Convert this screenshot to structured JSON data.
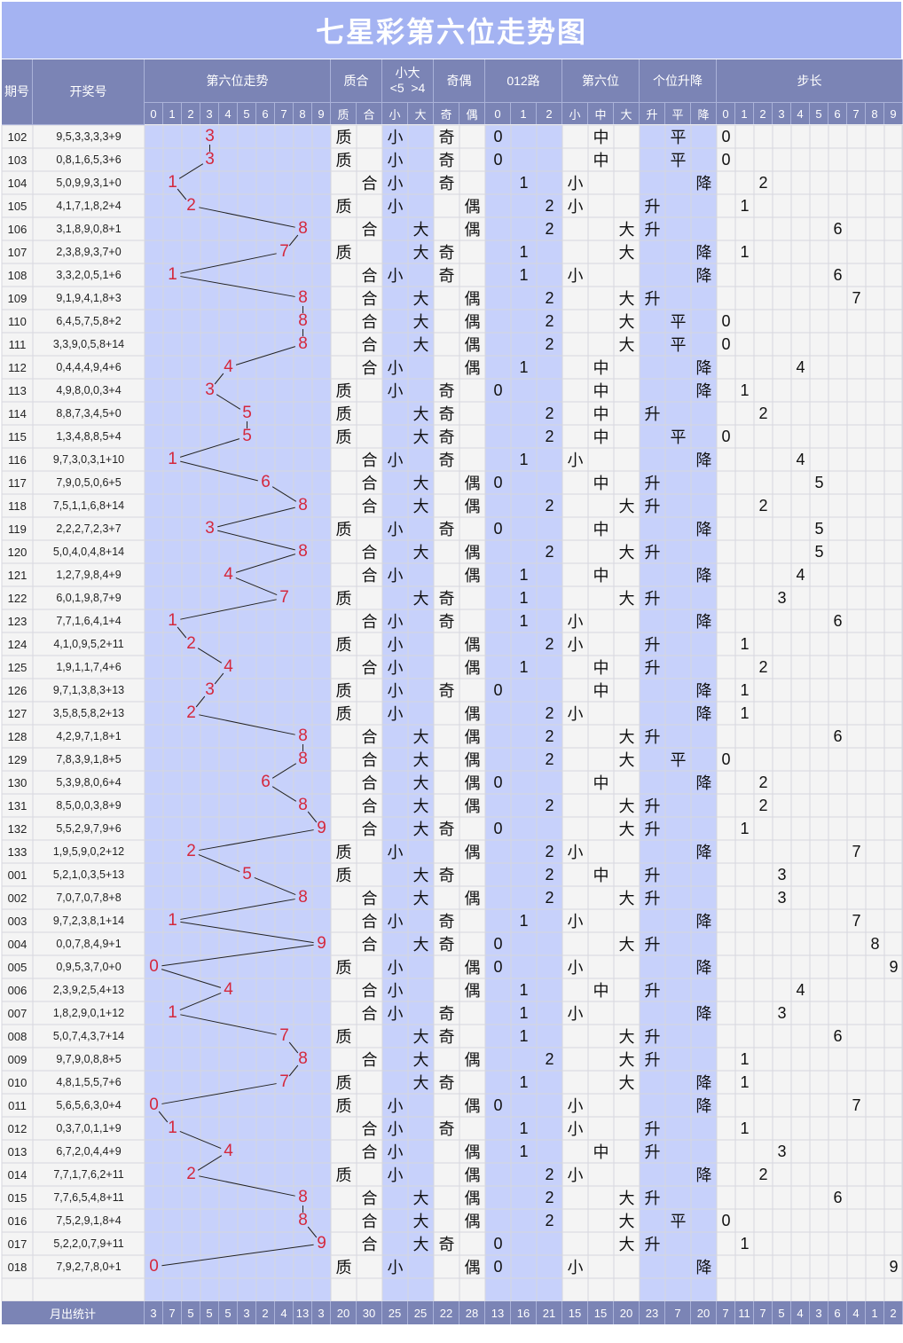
{
  "title": "七星彩第六位走势图",
  "headers": {
    "issue": "期号",
    "draw": "开奖号",
    "trend": "第六位走势",
    "prime": "质合",
    "size_top": "小大",
    "size_sub": "<5  >4",
    "parity": "奇偶",
    "road": "012路",
    "pos": "第六位",
    "updown": "个位升降",
    "step": "步长"
  },
  "sub_headers": {
    "digits": [
      "0",
      "1",
      "2",
      "3",
      "4",
      "5",
      "6",
      "7",
      "8",
      "9"
    ],
    "prime": [
      "质",
      "合"
    ],
    "size": [
      "小",
      "大"
    ],
    "parity": [
      "奇",
      "偶"
    ],
    "road": [
      "0",
      "1",
      "2"
    ],
    "pos": [
      "小",
      "中",
      "大"
    ],
    "updown": [
      "升",
      "平",
      "降"
    ],
    "step": [
      "0",
      "1",
      "2",
      "3",
      "4",
      "5",
      "6",
      "7",
      "8",
      "9"
    ]
  },
  "footer_label": "月出统计",
  "chart_data": {
    "type": "line",
    "title": "七星彩第六位走势图",
    "xlabel": "期号",
    "ylabel": "第六位",
    "ylim": [
      0,
      9
    ],
    "rows": [
      {
        "issue": "102",
        "draw": "9,5,3,3,3,3+9",
        "digit": 3,
        "prime": "质",
        "size": "小",
        "parity": "奇",
        "road": "0",
        "pos": "中",
        "updown": "平",
        "step": "0"
      },
      {
        "issue": "103",
        "draw": "0,8,1,6,5,3+6",
        "digit": 3,
        "prime": "质",
        "size": "小",
        "parity": "奇",
        "road": "0",
        "pos": "中",
        "updown": "平",
        "step": "0"
      },
      {
        "issue": "104",
        "draw": "5,0,9,9,3,1+0",
        "digit": 1,
        "prime": "合",
        "size": "小",
        "parity": "奇",
        "road": "1",
        "pos": "小",
        "updown": "降",
        "step": "2"
      },
      {
        "issue": "105",
        "draw": "4,1,7,1,8,2+4",
        "digit": 2,
        "prime": "质",
        "size": "小",
        "parity": "偶",
        "road": "2",
        "pos": "小",
        "updown": "升",
        "step": "1"
      },
      {
        "issue": "106",
        "draw": "3,1,8,9,0,8+1",
        "digit": 8,
        "prime": "合",
        "size": "大",
        "parity": "偶",
        "road": "2",
        "pos": "大",
        "updown": "升",
        "step": "6"
      },
      {
        "issue": "107",
        "draw": "2,3,8,9,3,7+0",
        "digit": 7,
        "prime": "质",
        "size": "大",
        "parity": "奇",
        "road": "1",
        "pos": "大",
        "updown": "降",
        "step": "1"
      },
      {
        "issue": "108",
        "draw": "3,3,2,0,5,1+6",
        "digit": 1,
        "prime": "合",
        "size": "小",
        "parity": "奇",
        "road": "1",
        "pos": "小",
        "updown": "降",
        "step": "6"
      },
      {
        "issue": "109",
        "draw": "9,1,9,4,1,8+3",
        "digit": 8,
        "prime": "合",
        "size": "大",
        "parity": "偶",
        "road": "2",
        "pos": "大",
        "updown": "升",
        "step": "7"
      },
      {
        "issue": "110",
        "draw": "6,4,5,7,5,8+2",
        "digit": 8,
        "prime": "合",
        "size": "大",
        "parity": "偶",
        "road": "2",
        "pos": "大",
        "updown": "平",
        "step": "0"
      },
      {
        "issue": "111",
        "draw": "3,3,9,0,5,8+14",
        "digit": 8,
        "prime": "合",
        "size": "大",
        "parity": "偶",
        "road": "2",
        "pos": "大",
        "updown": "平",
        "step": "0"
      },
      {
        "issue": "112",
        "draw": "0,4,4,4,9,4+6",
        "digit": 4,
        "prime": "合",
        "size": "小",
        "parity": "偶",
        "road": "1",
        "pos": "中",
        "updown": "降",
        "step": "4"
      },
      {
        "issue": "113",
        "draw": "4,9,8,0,0,3+4",
        "digit": 3,
        "prime": "质",
        "size": "小",
        "parity": "奇",
        "road": "0",
        "pos": "中",
        "updown": "降",
        "step": "1"
      },
      {
        "issue": "114",
        "draw": "8,8,7,3,4,5+0",
        "digit": 5,
        "prime": "质",
        "size": "大",
        "parity": "奇",
        "road": "2",
        "pos": "中",
        "updown": "升",
        "step": "2"
      },
      {
        "issue": "115",
        "draw": "1,3,4,8,8,5+4",
        "digit": 5,
        "prime": "质",
        "size": "大",
        "parity": "奇",
        "road": "2",
        "pos": "中",
        "updown": "平",
        "step": "0"
      },
      {
        "issue": "116",
        "draw": "9,7,3,0,3,1+10",
        "digit": 1,
        "prime": "合",
        "size": "小",
        "parity": "奇",
        "road": "1",
        "pos": "小",
        "updown": "降",
        "step": "4"
      },
      {
        "issue": "117",
        "draw": "7,9,0,5,0,6+5",
        "digit": 6,
        "prime": "合",
        "size": "大",
        "parity": "偶",
        "road": "0",
        "pos": "中",
        "updown": "升",
        "step": "5"
      },
      {
        "issue": "118",
        "draw": "7,5,1,1,6,8+14",
        "digit": 8,
        "prime": "合",
        "size": "大",
        "parity": "偶",
        "road": "2",
        "pos": "大",
        "updown": "升",
        "step": "2"
      },
      {
        "issue": "119",
        "draw": "2,2,2,7,2,3+7",
        "digit": 3,
        "prime": "质",
        "size": "小",
        "parity": "奇",
        "road": "0",
        "pos": "中",
        "updown": "降",
        "step": "5"
      },
      {
        "issue": "120",
        "draw": "5,0,4,0,4,8+14",
        "digit": 8,
        "prime": "合",
        "size": "大",
        "parity": "偶",
        "road": "2",
        "pos": "大",
        "updown": "升",
        "step": "5"
      },
      {
        "issue": "121",
        "draw": "1,2,7,9,8,4+9",
        "digit": 4,
        "prime": "合",
        "size": "小",
        "parity": "偶",
        "road": "1",
        "pos": "中",
        "updown": "降",
        "step": "4"
      },
      {
        "issue": "122",
        "draw": "6,0,1,9,8,7+9",
        "digit": 7,
        "prime": "质",
        "size": "大",
        "parity": "奇",
        "road": "1",
        "pos": "大",
        "updown": "升",
        "step": "3"
      },
      {
        "issue": "123",
        "draw": "7,7,1,6,4,1+4",
        "digit": 1,
        "prime": "合",
        "size": "小",
        "parity": "奇",
        "road": "1",
        "pos": "小",
        "updown": "降",
        "step": "6"
      },
      {
        "issue": "124",
        "draw": "4,1,0,9,5,2+11",
        "digit": 2,
        "prime": "质",
        "size": "小",
        "parity": "偶",
        "road": "2",
        "pos": "小",
        "updown": "升",
        "step": "1"
      },
      {
        "issue": "125",
        "draw": "1,9,1,1,7,4+6",
        "digit": 4,
        "prime": "合",
        "size": "小",
        "parity": "偶",
        "road": "1",
        "pos": "中",
        "updown": "升",
        "step": "2"
      },
      {
        "issue": "126",
        "draw": "9,7,1,3,8,3+13",
        "digit": 3,
        "prime": "质",
        "size": "小",
        "parity": "奇",
        "road": "0",
        "pos": "中",
        "updown": "降",
        "step": "1"
      },
      {
        "issue": "127",
        "draw": "3,5,8,5,8,2+13",
        "digit": 2,
        "prime": "质",
        "size": "小",
        "parity": "偶",
        "road": "2",
        "pos": "小",
        "updown": "降",
        "step": "1"
      },
      {
        "issue": "128",
        "draw": "4,2,9,7,1,8+1",
        "digit": 8,
        "prime": "合",
        "size": "大",
        "parity": "偶",
        "road": "2",
        "pos": "大",
        "updown": "升",
        "step": "6"
      },
      {
        "issue": "129",
        "draw": "7,8,3,9,1,8+5",
        "digit": 8,
        "prime": "合",
        "size": "大",
        "parity": "偶",
        "road": "2",
        "pos": "大",
        "updown": "平",
        "step": "0"
      },
      {
        "issue": "130",
        "draw": "5,3,9,8,0,6+4",
        "digit": 6,
        "prime": "合",
        "size": "大",
        "parity": "偶",
        "road": "0",
        "pos": "中",
        "updown": "降",
        "step": "2"
      },
      {
        "issue": "131",
        "draw": "8,5,0,0,3,8+9",
        "digit": 8,
        "prime": "合",
        "size": "大",
        "parity": "偶",
        "road": "2",
        "pos": "大",
        "updown": "升",
        "step": "2"
      },
      {
        "issue": "132",
        "draw": "5,5,2,9,7,9+6",
        "digit": 9,
        "prime": "合",
        "size": "大",
        "parity": "奇",
        "road": "0",
        "pos": "大",
        "updown": "升",
        "step": "1"
      },
      {
        "issue": "133",
        "draw": "1,9,5,9,0,2+12",
        "digit": 2,
        "prime": "质",
        "size": "小",
        "parity": "偶",
        "road": "2",
        "pos": "小",
        "updown": "降",
        "step": "7"
      },
      {
        "issue": "001",
        "draw": "5,2,1,0,3,5+13",
        "digit": 5,
        "prime": "质",
        "size": "大",
        "parity": "奇",
        "road": "2",
        "pos": "中",
        "updown": "升",
        "step": "3"
      },
      {
        "issue": "002",
        "draw": "7,0,7,0,7,8+8",
        "digit": 8,
        "prime": "合",
        "size": "大",
        "parity": "偶",
        "road": "2",
        "pos": "大",
        "updown": "升",
        "step": "3"
      },
      {
        "issue": "003",
        "draw": "9,7,2,3,8,1+14",
        "digit": 1,
        "prime": "合",
        "size": "小",
        "parity": "奇",
        "road": "1",
        "pos": "小",
        "updown": "降",
        "step": "7"
      },
      {
        "issue": "004",
        "draw": "0,0,7,8,4,9+1",
        "digit": 9,
        "prime": "合",
        "size": "大",
        "parity": "奇",
        "road": "0",
        "pos": "大",
        "updown": "升",
        "step": "8"
      },
      {
        "issue": "005",
        "draw": "0,9,5,3,7,0+0",
        "digit": 0,
        "prime": "质",
        "size": "小",
        "parity": "偶",
        "road": "0",
        "pos": "小",
        "updown": "降",
        "step": "9"
      },
      {
        "issue": "006",
        "draw": "2,3,9,2,5,4+13",
        "digit": 4,
        "prime": "合",
        "size": "小",
        "parity": "偶",
        "road": "1",
        "pos": "中",
        "updown": "升",
        "step": "4"
      },
      {
        "issue": "007",
        "draw": "1,8,2,9,0,1+12",
        "digit": 1,
        "prime": "合",
        "size": "小",
        "parity": "奇",
        "road": "1",
        "pos": "小",
        "updown": "降",
        "step": "3"
      },
      {
        "issue": "008",
        "draw": "5,0,7,4,3,7+14",
        "digit": 7,
        "prime": "质",
        "size": "大",
        "parity": "奇",
        "road": "1",
        "pos": "大",
        "updown": "升",
        "step": "6"
      },
      {
        "issue": "009",
        "draw": "9,7,9,0,8,8+5",
        "digit": 8,
        "prime": "合",
        "size": "大",
        "parity": "偶",
        "road": "2",
        "pos": "大",
        "updown": "升",
        "step": "1"
      },
      {
        "issue": "010",
        "draw": "4,8,1,5,5,7+6",
        "digit": 7,
        "prime": "质",
        "size": "大",
        "parity": "奇",
        "road": "1",
        "pos": "大",
        "updown": "降",
        "step": "1"
      },
      {
        "issue": "011",
        "draw": "5,6,5,6,3,0+4",
        "digit": 0,
        "prime": "质",
        "size": "小",
        "parity": "偶",
        "road": "0",
        "pos": "小",
        "updown": "降",
        "step": "7"
      },
      {
        "issue": "012",
        "draw": "0,3,7,0,1,1+9",
        "digit": 1,
        "prime": "合",
        "size": "小",
        "parity": "奇",
        "road": "1",
        "pos": "小",
        "updown": "升",
        "step": "1"
      },
      {
        "issue": "013",
        "draw": "6,7,2,0,4,4+9",
        "digit": 4,
        "prime": "合",
        "size": "小",
        "parity": "偶",
        "road": "1",
        "pos": "中",
        "updown": "升",
        "step": "3"
      },
      {
        "issue": "014",
        "draw": "7,7,1,7,6,2+11",
        "digit": 2,
        "prime": "质",
        "size": "小",
        "parity": "偶",
        "road": "2",
        "pos": "小",
        "updown": "降",
        "step": "2"
      },
      {
        "issue": "015",
        "draw": "7,7,6,5,4,8+11",
        "digit": 8,
        "prime": "合",
        "size": "大",
        "parity": "偶",
        "road": "2",
        "pos": "大",
        "updown": "升",
        "step": "6"
      },
      {
        "issue": "016",
        "draw": "7,5,2,9,1,8+4",
        "digit": 8,
        "prime": "合",
        "size": "大",
        "parity": "偶",
        "road": "2",
        "pos": "大",
        "updown": "平",
        "step": "0"
      },
      {
        "issue": "017",
        "draw": "5,2,2,0,7,9+11",
        "digit": 9,
        "prime": "合",
        "size": "大",
        "parity": "奇",
        "road": "0",
        "pos": "大",
        "updown": "升",
        "step": "1"
      },
      {
        "issue": "018",
        "draw": "7,9,2,7,8,0+1",
        "digit": 0,
        "prime": "质",
        "size": "小",
        "parity": "偶",
        "road": "0",
        "pos": "小",
        "updown": "降",
        "step": "9"
      }
    ],
    "footer_counts": [
      "3",
      "7",
      "5",
      "5",
      "5",
      "3",
      "2",
      "4",
      "13",
      "3",
      "20",
      "30",
      "25",
      "25",
      "22",
      "28",
      "13",
      "16",
      "21",
      "15",
      "15",
      "20",
      "23",
      "7",
      "20",
      "7",
      "11",
      "7",
      "5",
      "4",
      "3",
      "6",
      "4",
      "1",
      "2"
    ]
  },
  "colors": {
    "title_bg": "#a4b3f2",
    "header_bg": "#7b84b5",
    "stripe_blue": "#c7d1fb",
    "cell_bg": "#f4f4f4",
    "grid": "#d6d6de",
    "trend_number": "#d4283c"
  }
}
